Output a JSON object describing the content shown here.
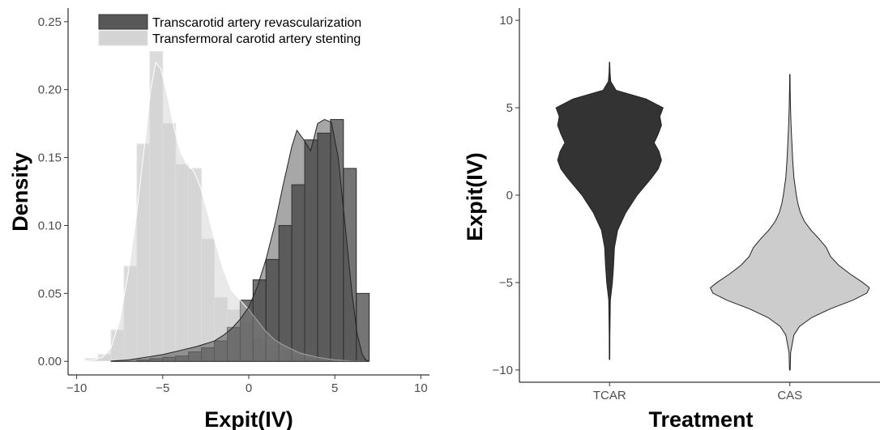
{
  "chart_data": [
    {
      "type": "histogram_density",
      "xlabel": "Expit(IV)",
      "ylabel": "Density",
      "xlim": [
        -10.5,
        10.5
      ],
      "ylim": [
        -0.01,
        0.26
      ],
      "x_ticks": [
        -10,
        -5,
        0,
        5,
        10
      ],
      "x_tick_labels": [
        "−10",
        "−5",
        "0",
        "5",
        "10"
      ],
      "y_ticks": [
        0.0,
        0.05,
        0.1,
        0.15,
        0.2,
        0.25
      ],
      "y_tick_labels": [
        "0.00",
        "0.05",
        "0.10",
        "0.15",
        "0.20",
        "0.25"
      ],
      "bin_edges": [
        -9.5,
        -8.75,
        -8,
        -7.25,
        -6.5,
        -5.75,
        -5,
        -4.25,
        -3.5,
        -2.75,
        -2,
        -1.25,
        -0.5,
        0.25,
        1,
        1.75,
        2.5,
        3.25,
        4,
        4.75,
        5.5,
        6.25,
        7
      ],
      "legend_position": "top",
      "series": [
        {
          "name": "Transcarotid artery revascularization",
          "color": "#3b3b3b",
          "hist_values": [
            0,
            0,
            0,
            0,
            0.001,
            0.002,
            0.003,
            0.004,
            0.007,
            0.01,
            0.015,
            0.025,
            0.045,
            0.06,
            0.075,
            0.1,
            0.13,
            0.163,
            0.168,
            0.178,
            0.142,
            0.05
          ],
          "density_x": [
            -8,
            -7,
            -6,
            -5,
            -4,
            -3,
            -2,
            -1.5,
            -1,
            -0.5,
            0,
            0.5,
            1,
            1.5,
            2,
            2.5,
            2.8,
            3.2,
            3.6,
            4,
            4.4,
            4.8,
            5.2,
            5.6,
            6,
            6.3,
            6.6,
            6.8,
            7
          ],
          "density_y": [
            0.0002,
            0.001,
            0.003,
            0.005,
            0.008,
            0.011,
            0.015,
            0.019,
            0.024,
            0.031,
            0.04,
            0.055,
            0.075,
            0.1,
            0.13,
            0.158,
            0.17,
            0.163,
            0.155,
            0.175,
            0.178,
            0.176,
            0.15,
            0.1,
            0.05,
            0.02,
            0.005,
            0.001,
            0
          ]
        },
        {
          "name": "Transfermoral carotid artery stenting",
          "color": "#cfcfcf",
          "hist_values": [
            0.002,
            0.005,
            0.023,
            0.07,
            0.16,
            0.228,
            0.175,
            0.145,
            0.142,
            0.09,
            0.047,
            0.038,
            0.028,
            0.017,
            0.012,
            0.008,
            0.005,
            0.003,
            0.002,
            0.001,
            0.0005,
            0
          ],
          "density_x": [
            -10,
            -9,
            -8.5,
            -8,
            -7.5,
            -7,
            -6.5,
            -6,
            -5.7,
            -5.4,
            -5.1,
            -4.8,
            -4.4,
            -4,
            -3.6,
            -3.2,
            -2.8,
            -2.4,
            -2,
            -1.5,
            -1,
            -0.5,
            0,
            0.5,
            1,
            1.5,
            2,
            3,
            4,
            5,
            6,
            7
          ],
          "density_y": [
            0,
            0.001,
            0.003,
            0.01,
            0.03,
            0.065,
            0.11,
            0.165,
            0.2,
            0.22,
            0.215,
            0.2,
            0.175,
            0.155,
            0.145,
            0.14,
            0.128,
            0.11,
            0.09,
            0.068,
            0.052,
            0.045,
            0.038,
            0.03,
            0.022,
            0.016,
            0.012,
            0.006,
            0.003,
            0.001,
            0.0003,
            0
          ]
        }
      ]
    },
    {
      "type": "violin",
      "xlabel": "Treatment",
      "ylabel": "Expit(IV)",
      "ylim": [
        -10.7,
        10.7
      ],
      "y_ticks": [
        -10,
        -5,
        0,
        5,
        10
      ],
      "y_tick_labels": [
        "−10",
        "−5",
        "0",
        "5",
        "10"
      ],
      "categories": [
        "TCAR",
        "CAS"
      ],
      "series": [
        {
          "name": "TCAR",
          "color": "#333333",
          "profile_y": [
            -9.4,
            -8,
            -6,
            -5,
            -4,
            -3,
            -2,
            -1,
            0,
            1,
            1.5,
            2,
            2.5,
            3,
            3.5,
            4,
            4.5,
            5,
            5.5,
            6,
            6.5,
            7,
            7.6
          ],
          "half_width": [
            0.003,
            0.004,
            0.01,
            0.035,
            0.05,
            0.06,
            0.1,
            0.2,
            0.34,
            0.52,
            0.6,
            0.64,
            0.61,
            0.55,
            0.6,
            0.64,
            0.62,
            0.66,
            0.45,
            0.08,
            0.015,
            0.006,
            0.002
          ]
        },
        {
          "name": "CAS",
          "color": "#cccccc",
          "profile_y": [
            -10,
            -9,
            -8,
            -7.5,
            -7,
            -6.5,
            -6,
            -5.6,
            -5.3,
            -5,
            -4.5,
            -4,
            -3.5,
            -3,
            -2.5,
            -2,
            -1.5,
            -1,
            -0.5,
            0,
            1,
            2,
            3,
            4,
            5,
            6,
            6.9
          ],
          "half_width": [
            0.004,
            0.01,
            0.05,
            0.12,
            0.27,
            0.5,
            0.78,
            0.95,
            0.98,
            0.9,
            0.74,
            0.6,
            0.5,
            0.45,
            0.36,
            0.26,
            0.18,
            0.13,
            0.1,
            0.08,
            0.05,
            0.035,
            0.025,
            0.015,
            0.008,
            0.004,
            0.002
          ]
        }
      ]
    }
  ]
}
